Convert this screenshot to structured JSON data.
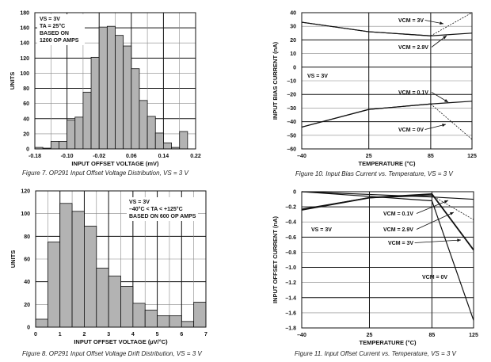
{
  "chart_data": [
    {
      "type": "bar",
      "title": "Figure 7. OP291 Input Offset Voltage Distribution, VS = 3 V",
      "xlabel": "INPUT OFFSET VOLTAGE (mV)",
      "ylabel": "UNITS",
      "xlim": [
        -0.18,
        0.22
      ],
      "ylim": [
        0,
        180
      ],
      "xticks": [
        "-0.18",
        "-0.10",
        "-0.02",
        "0.06",
        "0.14",
        "0.22"
      ],
      "xtick_values": [
        -0.18,
        -0.1,
        -0.02,
        0.06,
        0.14,
        0.22
      ],
      "yticks": [
        0,
        20,
        40,
        60,
        80,
        100,
        120,
        140,
        160,
        180
      ],
      "bin_start": -0.18,
      "bin_width": 0.02,
      "values": [
        2,
        1,
        10,
        10,
        38,
        42,
        75,
        121,
        161,
        162,
        150,
        136,
        106,
        64,
        43,
        21,
        8,
        2,
        23,
        0
      ],
      "annotation": [
        "VS = 3V",
        "TA = 25°C",
        "BASED ON",
        "1200 OP AMPS"
      ],
      "grid": true
    },
    {
      "type": "bar",
      "title": "Figure 8. OP291 Input Offset Voltage Drift Distribution, VS = 3 V",
      "xlabel": "INPUT OFFSET VOLTAGE (µV/°C)",
      "ylabel": "UNITS",
      "xlim": [
        0,
        7
      ],
      "ylim": [
        0,
        120
      ],
      "xticks": [
        "0",
        "1",
        "2",
        "3",
        "4",
        "5",
        "6",
        "7"
      ],
      "xtick_values": [
        0,
        1,
        2,
        3,
        4,
        5,
        6,
        7
      ],
      "yticks": [
        0,
        20,
        40,
        60,
        80,
        100,
        120
      ],
      "bin_start": 0,
      "bin_width": 0.5,
      "values": [
        7,
        75,
        109,
        102,
        89,
        52,
        45,
        36,
        21,
        15,
        10,
        10,
        5,
        22
      ],
      "annotation": [
        "VS = 3V",
        "–40°C < TA < +125°C",
        "BASED ON 600 OP AMPS"
      ],
      "grid": true
    },
    {
      "type": "line",
      "title": "Figure 10. Input Bias Current vs. Temperature, VS = 3 V",
      "xlabel": "TEMPERATURE (°C)",
      "ylabel": "INPUT BIAS CURRENT (nA)",
      "xlim": [
        -40,
        125
      ],
      "ylim": [
        -60,
        40
      ],
      "xticks": [
        "–40",
        "25",
        "85",
        "125"
      ],
      "xtick_values": [
        -40,
        25,
        85,
        125
      ],
      "yticks": [
        -60,
        -50,
        -40,
        -30,
        -20,
        -10,
        0,
        10,
        20,
        30,
        40
      ],
      "annotation": [
        "VS = 3V"
      ],
      "series": [
        {
          "name": "VCM = 3V",
          "x": [
            -40,
            25,
            85,
            125
          ],
          "y": [
            33,
            26,
            23,
            40
          ],
          "dashed_after": 85
        },
        {
          "name": "VCM = 2.9V",
          "x": [
            -40,
            25,
            85,
            105,
            125
          ],
          "y": [
            33,
            26,
            23,
            24,
            25
          ]
        },
        {
          "name": "VCM = 0.1V",
          "x": [
            -40,
            25,
            85,
            105,
            125
          ],
          "y": [
            -44,
            -31,
            -27,
            -26,
            -25
          ]
        },
        {
          "name": "VCM = 0V",
          "x": [
            -40,
            25,
            85,
            125
          ],
          "y": [
            -44,
            -31,
            -27,
            -53
          ],
          "dashed_after": 85
        }
      ],
      "grid": true
    },
    {
      "type": "line",
      "title": "Figure 11. Input Offset Current vs. Temperature, VS = 3 V",
      "xlabel": "TEMPERATURE (°C)",
      "ylabel": "INPUT OFFSET CURRENT (nA)",
      "xlim": [
        -40,
        125
      ],
      "ylim": [
        -1.8,
        0
      ],
      "xticks": [
        "–40",
        "25",
        "85",
        "125"
      ],
      "xtick_values": [
        -40,
        25,
        85,
        125
      ],
      "yticks": [
        -1.8,
        -1.6,
        -1.4,
        -1.2,
        -1.0,
        -0.8,
        -0.6,
        -0.4,
        -0.2,
        0
      ],
      "annotation": [
        "VS = 3V"
      ],
      "series": [
        {
          "name": "VCM = 0.1V",
          "x": [
            -40,
            85,
            125
          ],
          "y": [
            0,
            -0.07,
            -0.1
          ]
        },
        {
          "name": "VCM = 2.9V",
          "x": [
            -40,
            25,
            85,
            125
          ],
          "y": [
            -0.23,
            -0.08,
            -0.05,
            -0.37
          ],
          "dashed_after": 85
        },
        {
          "name": "VCM = 3V",
          "x": [
            -40,
            25,
            85,
            125
          ],
          "y": [
            -0.24,
            -0.08,
            -0.03,
            -0.77
          ],
          "thick": true
        },
        {
          "name": "VCM = 0V",
          "x": [
            -40,
            85,
            125
          ],
          "y": [
            0,
            -0.12,
            -1.7
          ]
        }
      ],
      "grid": true
    }
  ]
}
